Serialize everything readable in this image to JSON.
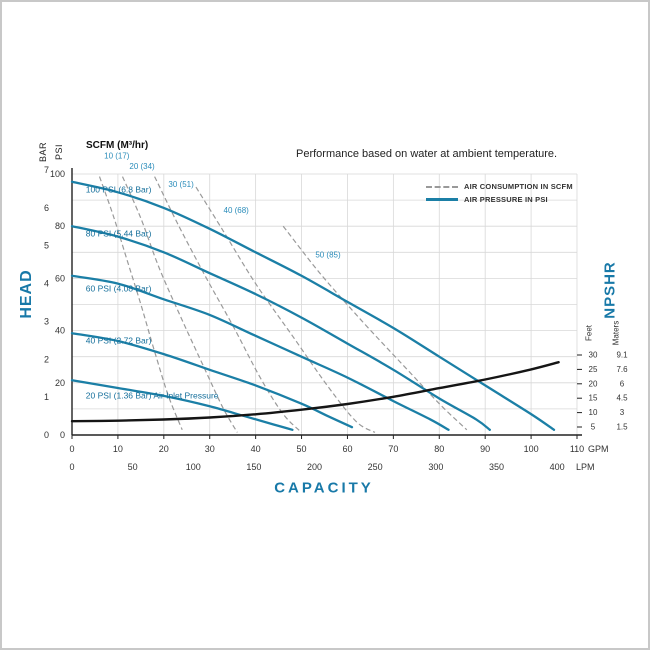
{
  "colors": {
    "accent": "#1879a8",
    "pressure_curve": "#1b7fa6",
    "air_curve": "#9a9a9a",
    "npshr_curve": "#151515",
    "grid": "#d8d8d8",
    "axis": "#222222",
    "tick_text": "#333333",
    "pressure_label_text": "#156f9b",
    "air_label_text": "#2a8cba"
  },
  "chart_data": {
    "type": "line",
    "title": "Performance based on water at ambient temperature.",
    "air_header": "SCFM (M³/hr)",
    "legend": {
      "position": "top-right",
      "items": [
        {
          "label": "AIR CONSUMPTION IN SCFM",
          "style": "dashed",
          "color": "#999999"
        },
        {
          "label": "AIR PRESSURE IN PSI",
          "style": "solid",
          "color": "#1b7fa6"
        }
      ]
    },
    "x_axis": {
      "label": "CAPACITY",
      "primary_unit": "GPM",
      "primary_ticks": [
        0,
        10,
        20,
        30,
        40,
        50,
        60,
        70,
        80,
        90,
        100,
        110
      ],
      "secondary_unit": "LPM",
      "secondary_ticks": [
        0,
        50,
        100,
        150,
        200,
        250,
        300,
        350,
        400
      ],
      "gpm_range": [
        0,
        110
      ],
      "lpm_per_gpm": 3.7854
    },
    "y_axis": {
      "label": "HEAD",
      "psi_unit": "PSI",
      "bar_unit": "BAR",
      "psi_ticks": [
        0,
        20,
        40,
        60,
        80,
        100
      ],
      "bar_ticks": [
        7,
        6,
        5,
        4,
        3,
        2,
        1,
        0
      ],
      "psi_per_bar": 14.5038,
      "psi_range": [
        0,
        100
      ],
      "psi_gridline_step": 10
    },
    "npshr_axis": {
      "label": "NPSHR",
      "feet_unit": "Feet",
      "meters_unit": "Maters",
      "feet_ticks": [
        30,
        25,
        20,
        15,
        10,
        5
      ],
      "meters_ticks": [
        "9.1",
        "7.6",
        "6",
        "4.5",
        "3",
        "1.5"
      ],
      "feet_range": [
        5,
        30
      ]
    },
    "pressure_curves": [
      {
        "label": "100 PSI (6.8 Bar)",
        "label_at": [
          3,
          93
        ],
        "points_gpm_psi": [
          [
            0,
            97
          ],
          [
            10,
            93
          ],
          [
            20,
            87
          ],
          [
            30,
            79
          ],
          [
            40,
            70
          ],
          [
            50,
            61
          ],
          [
            60,
            51
          ],
          [
            70,
            41
          ],
          [
            80,
            30
          ],
          [
            90,
            19
          ],
          [
            100,
            8
          ],
          [
            105,
            2
          ]
        ]
      },
      {
        "label": "80 PSI (5.44 Bar)",
        "label_at": [
          3,
          76
        ],
        "points_gpm_psi": [
          [
            0,
            80
          ],
          [
            10,
            76
          ],
          [
            20,
            70
          ],
          [
            30,
            62
          ],
          [
            40,
            54
          ],
          [
            50,
            45
          ],
          [
            60,
            35
          ],
          [
            70,
            25
          ],
          [
            80,
            14
          ],
          [
            88,
            6
          ],
          [
            91,
            2
          ]
        ]
      },
      {
        "label": "60 PSI (4.08 Bar)",
        "label_at": [
          3,
          55
        ],
        "points_gpm_psi": [
          [
            0,
            61
          ],
          [
            10,
            58
          ],
          [
            20,
            52
          ],
          [
            30,
            46
          ],
          [
            40,
            38
          ],
          [
            50,
            30
          ],
          [
            60,
            22
          ],
          [
            70,
            13
          ],
          [
            78,
            6
          ],
          [
            82,
            2
          ]
        ]
      },
      {
        "label": "40 PSI (2.72 Bar)",
        "label_at": [
          3,
          35
        ],
        "points_gpm_psi": [
          [
            0,
            39
          ],
          [
            10,
            36
          ],
          [
            20,
            31
          ],
          [
            30,
            25
          ],
          [
            40,
            19
          ],
          [
            50,
            12
          ],
          [
            56,
            7
          ],
          [
            61,
            3
          ]
        ]
      },
      {
        "label": "20 PSI (1.36 Bar) Air Inlet Pressure",
        "label_at": [
          3,
          14
        ],
        "points_gpm_psi": [
          [
            0,
            21
          ],
          [
            10,
            18
          ],
          [
            20,
            15
          ],
          [
            30,
            11
          ],
          [
            38,
            7
          ],
          [
            44,
            4
          ],
          [
            48,
            2
          ]
        ]
      }
    ],
    "air_curves": [
      {
        "label": "10 (17)",
        "label_at": [
          7,
          106
        ],
        "points_gpm_psi": [
          [
            6,
            99
          ],
          [
            9,
            84
          ],
          [
            12,
            67
          ],
          [
            15,
            50
          ],
          [
            18,
            32
          ],
          [
            21,
            15
          ],
          [
            24,
            2
          ]
        ]
      },
      {
        "label": "20 (34)",
        "label_at": [
          12.5,
          102
        ],
        "points_gpm_psi": [
          [
            11,
            99
          ],
          [
            15,
            83
          ],
          [
            19,
            64
          ],
          [
            24,
            44
          ],
          [
            29,
            25
          ],
          [
            33,
            10
          ],
          [
            36,
            1
          ]
        ]
      },
      {
        "label": "30 (51)",
        "label_at": [
          21,
          95
        ],
        "points_gpm_psi": [
          [
            18,
            99
          ],
          [
            23,
            81
          ],
          [
            29,
            61
          ],
          [
            35,
            42
          ],
          [
            41,
            22
          ],
          [
            46,
            8
          ],
          [
            50,
            1
          ]
        ]
      },
      {
        "label": "40 (68)",
        "label_at": [
          33,
          85
        ],
        "points_gpm_psi": [
          [
            27,
            95
          ],
          [
            33,
            78
          ],
          [
            40,
            58
          ],
          [
            48,
            38
          ],
          [
            56,
            18
          ],
          [
            62,
            5
          ],
          [
            66,
            1
          ]
        ]
      },
      {
        "label": "50 (85)",
        "label_at": [
          53,
          68
        ],
        "points_gpm_psi": [
          [
            46,
            80
          ],
          [
            54,
            62
          ],
          [
            63,
            44
          ],
          [
            72,
            27
          ],
          [
            80,
            12
          ],
          [
            86,
            2
          ]
        ]
      }
    ],
    "npshr_curve": {
      "points_gpm_feet": [
        [
          0,
          7
        ],
        [
          10,
          7.2
        ],
        [
          20,
          7.6
        ],
        [
          30,
          8.3
        ],
        [
          40,
          9.4
        ],
        [
          50,
          11
        ],
        [
          60,
          13
        ],
        [
          70,
          15.5
        ],
        [
          80,
          18.5
        ],
        [
          90,
          21.5
        ],
        [
          100,
          25
        ],
        [
          106,
          27.5
        ]
      ]
    }
  }
}
